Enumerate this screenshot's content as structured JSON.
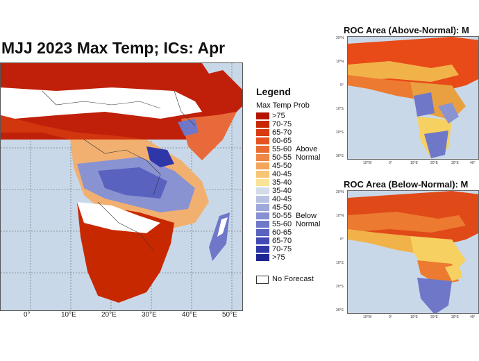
{
  "main_map": {
    "title": "MJJ 2023 Max Temp; ICs: Apr",
    "lon_ticks": [
      "0°",
      "10°E",
      "20°E",
      "30°E",
      "40°E",
      "50°E"
    ],
    "legend": {
      "title": "Legend",
      "subtitle": "Max Temp Prob",
      "items": [
        {
          "label": ">75",
          "color": "#b31400"
        },
        {
          "label": "70-75",
          "color": "#c82800"
        },
        {
          "label": "65-70",
          "color": "#d93b10"
        },
        {
          "label": "60-65",
          "color": "#e55220"
        },
        {
          "label": "55-60",
          "color": "#ea6a30"
        },
        {
          "label": "50-55",
          "color": "#ef8745"
        },
        {
          "label": "45-50",
          "color": "#f4a65a"
        },
        {
          "label": "40-45",
          "color": "#f8c574"
        },
        {
          "label": "35-40",
          "color": "#fbe395"
        },
        {
          "label": "35-40",
          "color": "#d3dbe9"
        },
        {
          "label": "40-45",
          "color": "#b9c2e2"
        },
        {
          "label": "45-50",
          "color": "#9ea9da"
        },
        {
          "label": "50-55",
          "color": "#8791d2"
        },
        {
          "label": "55-60",
          "color": "#6f78c8"
        },
        {
          "label": "60-65",
          "color": "#5a62c0"
        },
        {
          "label": "65-70",
          "color": "#4249b4"
        },
        {
          "label": "70-75",
          "color": "#2f36a8"
        },
        {
          "label": ">75",
          "color": "#1d2494"
        }
      ],
      "above_label_1": "Above",
      "above_label_2": "Normal",
      "below_label_1": "Below",
      "below_label_2": "Normal",
      "no_forecast": "No Forecast"
    }
  },
  "roc_above": {
    "title": "ROC Area (Above-Normal): M",
    "lat_ticks": [
      "20°N",
      "10°N",
      "0°",
      "10°S",
      "20°S",
      "30°S"
    ],
    "lon_ticks": [
      "10°W",
      "0°",
      "10°E",
      "20°E",
      "30°E",
      "40°"
    ]
  },
  "roc_below": {
    "title": "ROC Area (Below-Normal): M",
    "lat_ticks": [
      "20°N",
      "10°N",
      "0°",
      "10°S",
      "20°S",
      "30°S"
    ],
    "lon_ticks": [
      "10°W",
      "0°",
      "10°E",
      "20°E",
      "30°E",
      "40°"
    ]
  }
}
